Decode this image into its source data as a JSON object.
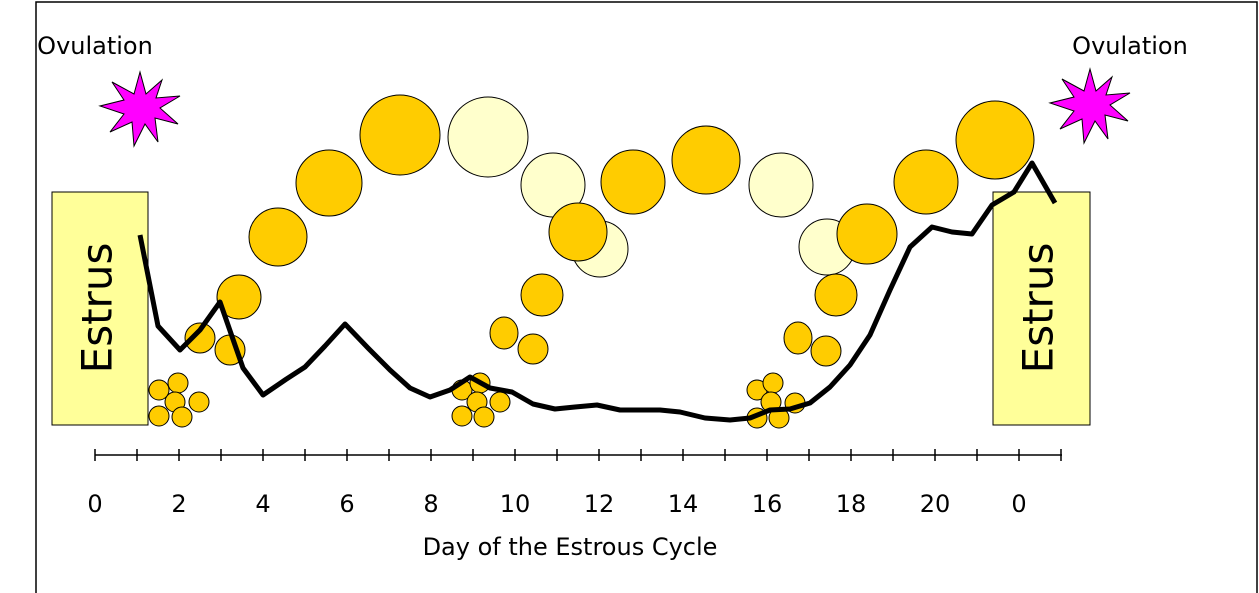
{
  "ovulation": [
    "Ovulation",
    "Ovulation"
  ],
  "estrus": [
    "Estrus",
    "Estrus"
  ],
  "axis": {
    "ticks": [
      "0",
      "2",
      "4",
      "6",
      "8",
      "10",
      "12",
      "14",
      "16",
      "18",
      "20",
      "0"
    ],
    "title": "Day of the Estrous Cycle"
  }
}
